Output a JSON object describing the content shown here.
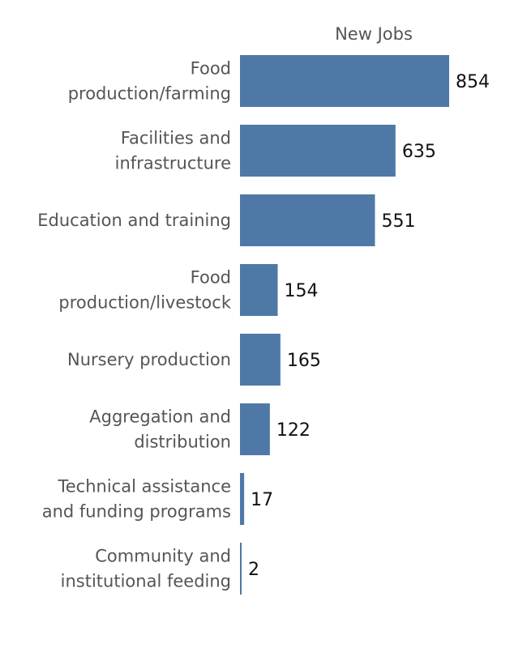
{
  "chart_data": {
    "type": "bar",
    "orientation": "horizontal",
    "title": "",
    "series_title": "New Jobs",
    "bar_color": "#4e79a7",
    "categories": [
      [
        "Food",
        "production/farming"
      ],
      [
        "Facilities and",
        "infrastructure"
      ],
      [
        "Education and training"
      ],
      [
        "Food",
        "production/livestock"
      ],
      [
        "Nursery production"
      ],
      [
        "Aggregation and",
        "distribution"
      ],
      [
        "Technical assistance",
        "and funding programs"
      ],
      [
        "Community and",
        "institutional feeding"
      ]
    ],
    "values": [
      854,
      635,
      551,
      154,
      165,
      122,
      17,
      2
    ],
    "xlim": [
      0,
      854
    ],
    "grid": false,
    "legend": "none"
  }
}
